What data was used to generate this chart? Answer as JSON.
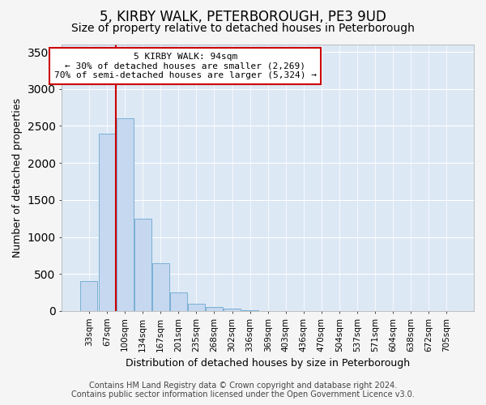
{
  "title": "5, KIRBY WALK, PETERBOROUGH, PE3 9UD",
  "subtitle": "Size of property relative to detached houses in Peterborough",
  "xlabel": "Distribution of detached houses by size in Peterborough",
  "ylabel": "Number of detached properties",
  "footer_line1": "Contains HM Land Registry data © Crown copyright and database right 2024.",
  "footer_line2": "Contains public sector information licensed under the Open Government Licence v3.0.",
  "bin_labels": [
    "33sqm",
    "67sqm",
    "100sqm",
    "134sqm",
    "167sqm",
    "201sqm",
    "235sqm",
    "268sqm",
    "302sqm",
    "336sqm",
    "369sqm",
    "403sqm",
    "436sqm",
    "470sqm",
    "504sqm",
    "537sqm",
    "571sqm",
    "604sqm",
    "638sqm",
    "672sqm",
    "705sqm"
  ],
  "bar_values": [
    400,
    2400,
    2600,
    1250,
    640,
    250,
    100,
    55,
    30,
    5,
    0,
    0,
    0,
    0,
    0,
    0,
    0,
    0,
    0,
    0,
    0
  ],
  "bar_color": "#c5d8f0",
  "bar_edge_color": "#7aafd4",
  "vline_x_index": 2,
  "vline_color": "#cc0000",
  "annotation_text": "5 KIRBY WALK: 94sqm\n← 30% of detached houses are smaller (2,269)\n70% of semi-detached houses are larger (5,324) →",
  "annotation_box_facecolor": "#ffffff",
  "annotation_box_edgecolor": "#cc0000",
  "ylim": [
    0,
    3600
  ],
  "yticks": [
    0,
    500,
    1000,
    1500,
    2000,
    2500,
    3000,
    3500
  ],
  "figure_bg_color": "#f5f5f5",
  "plot_bg_color": "#dde8f5",
  "grid_color": "#ffffff",
  "title_fontsize": 12,
  "subtitle_fontsize": 10,
  "ylabel_fontsize": 9,
  "xlabel_fontsize": 9,
  "tick_fontsize": 7.5,
  "annotation_fontsize": 8,
  "footer_fontsize": 7
}
